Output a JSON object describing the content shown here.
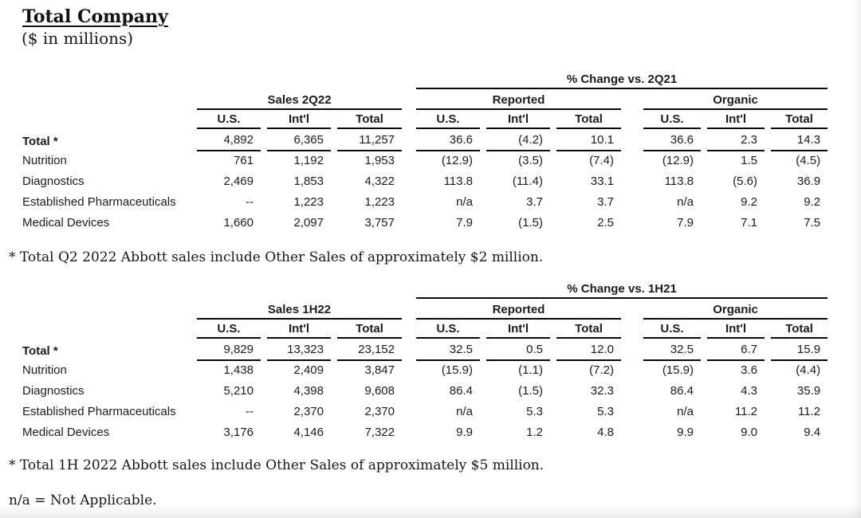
{
  "page": {
    "title": "Total Company",
    "subtitle": "($ in millions)",
    "na_footnote": "n/a = Not Applicable."
  },
  "tables": [
    {
      "sales_header": "Sales 2Q22",
      "change_header": "% Change vs. 2Q21",
      "reported_header": "Reported",
      "organic_header": "Organic",
      "region_headers": [
        "U.S.",
        "Int'l",
        "Total"
      ],
      "rows": [
        {
          "label": "Total *",
          "emphasis": true,
          "underline": true,
          "values": [
            "4,892",
            "6,365",
            "11,257",
            "36.6",
            "(4.2)",
            "10.1",
            "36.6",
            "2.3",
            "14.3"
          ]
        },
        {
          "label": "Nutrition",
          "emphasis": false,
          "underline": false,
          "values": [
            "761",
            "1,192",
            "1,953",
            "(12.9)",
            "(3.5)",
            "(7.4)",
            "(12.9)",
            "1.5",
            "(4.5)"
          ]
        },
        {
          "label": "Diagnostics",
          "emphasis": false,
          "underline": false,
          "values": [
            "2,469",
            "1,853",
            "4,322",
            "113.8",
            "(11.4)",
            "33.1",
            "113.8",
            "(5.6)",
            "36.9"
          ]
        },
        {
          "label": "Established Pharmaceuticals",
          "emphasis": false,
          "underline": false,
          "values": [
            "--",
            "1,223",
            "1,223",
            "n/a",
            "3.7",
            "3.7",
            "n/a",
            "9.2",
            "9.2"
          ]
        },
        {
          "label": "Medical Devices",
          "emphasis": false,
          "underline": false,
          "values": [
            "1,660",
            "2,097",
            "3,757",
            "7.9",
            "(1.5)",
            "2.5",
            "7.9",
            "7.1",
            "7.5"
          ]
        }
      ],
      "footnote": "* Total Q2 2022 Abbott sales include Other Sales of approximately $2 million."
    },
    {
      "sales_header": "Sales 1H22",
      "change_header": "% Change vs. 1H21",
      "reported_header": "Reported",
      "organic_header": "Organic",
      "region_headers": [
        "U.S.",
        "Int'l",
        "Total"
      ],
      "rows": [
        {
          "label": "Total *",
          "emphasis": true,
          "underline": true,
          "values": [
            "9,829",
            "13,323",
            "23,152",
            "32.5",
            "0.5",
            "12.0",
            "32.5",
            "6.7",
            "15.9"
          ]
        },
        {
          "label": "Nutrition",
          "emphasis": false,
          "underline": false,
          "values": [
            "1,438",
            "2,409",
            "3,847",
            "(15.9)",
            "(1.1)",
            "(7.2)",
            "(15.9)",
            "3.6",
            "(4.4)"
          ]
        },
        {
          "label": "Diagnostics",
          "emphasis": false,
          "underline": false,
          "values": [
            "5,210",
            "4,398",
            "9,608",
            "86.4",
            "(1.5)",
            "32.3",
            "86.4",
            "4.3",
            "35.9"
          ]
        },
        {
          "label": "Established Pharmaceuticals",
          "emphasis": false,
          "underline": false,
          "values": [
            "--",
            "2,370",
            "2,370",
            "n/a",
            "5.3",
            "5.3",
            "n/a",
            "11.2",
            "11.2"
          ]
        },
        {
          "label": "Medical Devices",
          "emphasis": false,
          "underline": false,
          "values": [
            "3,176",
            "4,146",
            "7,322",
            "9.9",
            "1.2",
            "4.8",
            "9.9",
            "9.0",
            "9.4"
          ]
        }
      ],
      "footnote": "* Total 1H 2022 Abbott sales include Other Sales of approximately $5 million."
    }
  ],
  "colors": {
    "text": "#1c1c1c",
    "rule": "#0a0a0a",
    "background": "#ffffff"
  }
}
